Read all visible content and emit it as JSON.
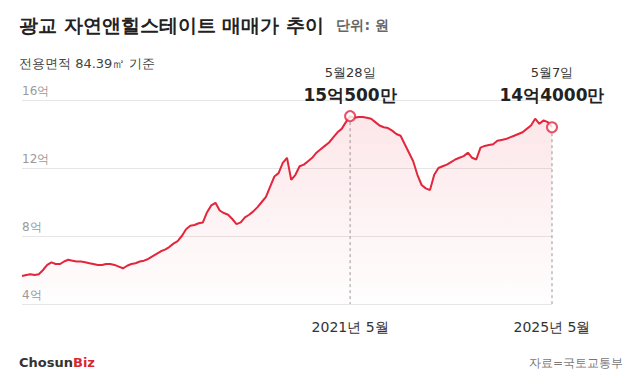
{
  "chart_data": {
    "type": "line",
    "title": "광교 자연앤힐스테이트 매매가 추이",
    "unit": "단위: 원",
    "subtitle": "전용면적 84.39㎡ 기준",
    "source": "자료=국토교통부",
    "logo": {
      "text": "Chosun",
      "accent": "Biz"
    },
    "color": "#e3263c",
    "grid": true,
    "categories": [
      null,
      null,
      null,
      null,
      null,
      null,
      null,
      null,
      null,
      null,
      null,
      null,
      null,
      null,
      null,
      null,
      null,
      null,
      null,
      null,
      null,
      null,
      null,
      null,
      null,
      null,
      null,
      null,
      null,
      null,
      null,
      null,
      null,
      null,
      null,
      null,
      null,
      null,
      null,
      null,
      null,
      null,
      null,
      null,
      null,
      null,
      null,
      null,
      null,
      null,
      null,
      null,
      null,
      null,
      null,
      null,
      null,
      null,
      null,
      null,
      null,
      null,
      null,
      null,
      null,
      null,
      null,
      null,
      null,
      null,
      null,
      null,
      null,
      null,
      null,
      null,
      null,
      null,
      "2021년 5월",
      null,
      null,
      null,
      null,
      null,
      null,
      null,
      null,
      null,
      null,
      null,
      null,
      null,
      null,
      null,
      null,
      null,
      null,
      null,
      null,
      null,
      null,
      null,
      null,
      null,
      null,
      null,
      null,
      null,
      null,
      null,
      null,
      null,
      null,
      null,
      null,
      null,
      null,
      null,
      null,
      null,
      null,
      null,
      null,
      null,
      null,
      null,
      "2025년 5월"
    ],
    "values": [
      5.65,
      5.7,
      5.75,
      5.7,
      5.75,
      6.0,
      6.3,
      6.45,
      6.35,
      6.35,
      6.5,
      6.6,
      6.55,
      6.5,
      6.5,
      6.45,
      6.4,
      6.35,
      6.3,
      6.3,
      6.35,
      6.35,
      6.3,
      6.2,
      6.1,
      6.25,
      6.35,
      6.4,
      6.5,
      6.55,
      6.65,
      6.8,
      6.95,
      7.1,
      7.2,
      7.35,
      7.55,
      7.7,
      8.0,
      8.4,
      8.6,
      8.65,
      8.75,
      8.8,
      9.4,
      9.8,
      9.95,
      9.5,
      9.35,
      9.25,
      9.0,
      8.7,
      8.8,
      9.1,
      9.25,
      9.45,
      9.7,
      10.0,
      10.3,
      10.9,
      11.5,
      11.7,
      12.3,
      12.6,
      11.3,
      11.6,
      12.1,
      12.2,
      12.4,
      12.6,
      12.9,
      13.1,
      13.3,
      13.5,
      13.8,
      14.1,
      14.3,
      14.7,
      15.05,
      14.95,
      15.0,
      15.0,
      14.95,
      14.9,
      14.7,
      14.5,
      14.4,
      14.35,
      14.2,
      14.0,
      13.9,
      13.4,
      12.9,
      12.4,
      11.6,
      11.0,
      10.8,
      10.7,
      11.6,
      12.0,
      12.1,
      12.2,
      12.35,
      12.5,
      12.6,
      12.7,
      12.9,
      12.6,
      12.5,
      13.2,
      13.3,
      13.35,
      13.4,
      13.6,
      13.65,
      13.7,
      13.8,
      13.9,
      14.0,
      14.1,
      14.3,
      14.5,
      14.9,
      14.6,
      14.8,
      14.7,
      14.4
    ],
    "ylim": [
      4,
      16
    ],
    "yticks": [
      {
        "value": 4,
        "label": "4억"
      },
      {
        "value": 8,
        "label": "8억"
      },
      {
        "value": 12,
        "label": "12억"
      },
      {
        "value": 16,
        "label": "16억"
      }
    ],
    "annotations": [
      {
        "category": "2021년 5월",
        "date": "5월28일",
        "text": "15억500만",
        "value": 15.05,
        "marker": "circle"
      },
      {
        "category": "2025년 5월",
        "date": "5월7일",
        "text": "14억4000만",
        "value": 14.4,
        "marker": "circle"
      }
    ]
  }
}
